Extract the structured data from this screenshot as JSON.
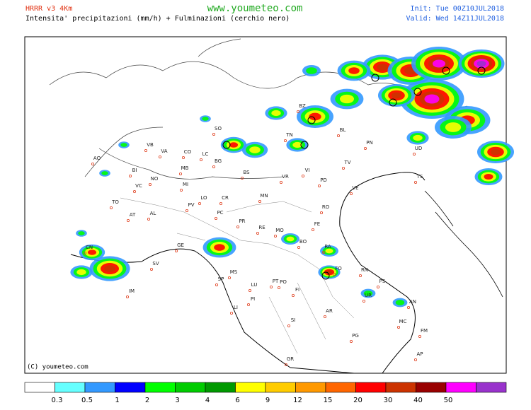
{
  "header": {
    "model": "HRRR v3 4Km",
    "subtitle": "Intensita' precipitazioni (mm/h) + Fulminazioni (cerchio nero)",
    "site": "www.youmeteo.com",
    "init": "Init: Tue 00Z10JUL2018",
    "valid": "Valid: Wed 14Z11JUL2018"
  },
  "copyright": "(C) youmeteo.com",
  "cities": [
    "AO",
    "BI",
    "VB",
    "VA",
    "CO",
    "LC",
    "SO",
    "BZ",
    "TN",
    "BL",
    "PN",
    "UD",
    "TS",
    "TV",
    "VE",
    "PD",
    "VI",
    "VR",
    "BS",
    "BG",
    "MB",
    "MI",
    "NO",
    "VC",
    "TO",
    "AT",
    "AL",
    "PV",
    "LO",
    "CR",
    "PC",
    "MN",
    "RO",
    "PR",
    "RE",
    "MO",
    "FE",
    "BO",
    "RA",
    "CN",
    "SV",
    "GE",
    "SP",
    "MS",
    "LU",
    "PT",
    "PO",
    "FI",
    "FO",
    "RN",
    "PS",
    "UR",
    "AN",
    "PI",
    "LI",
    "AR",
    "SI",
    "MC",
    "FM",
    "PG",
    "GR",
    "AP",
    "IM"
  ],
  "legend": {
    "colors": [
      "#ffffff",
      "#66ffff",
      "#3399ff",
      "#0000ff",
      "#00ff00",
      "#00cc00",
      "#009900",
      "#ffff00",
      "#ffcc00",
      "#ff9900",
      "#ff6600",
      "#ff0000",
      "#cc3300",
      "#990000",
      "#ff00ff",
      "#9933cc"
    ],
    "labels": [
      "0.3",
      "0.5",
      "1",
      "2",
      "3",
      "4",
      "6",
      "9",
      "12",
      "15",
      "20",
      "30",
      "40",
      "50"
    ]
  }
}
